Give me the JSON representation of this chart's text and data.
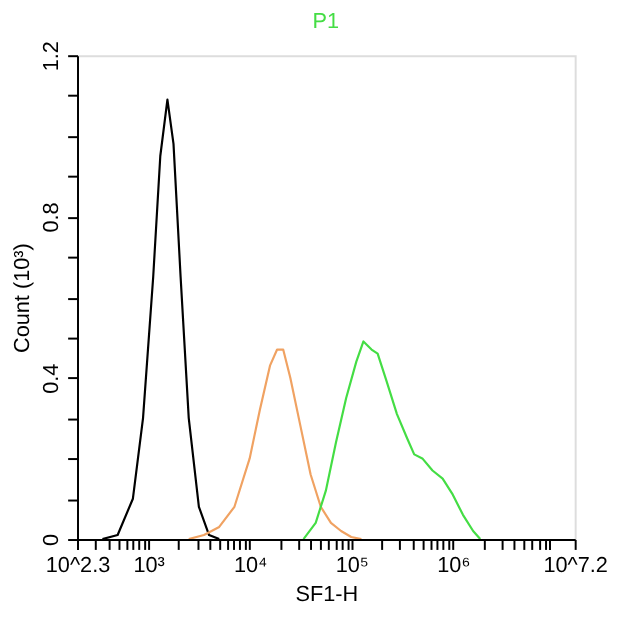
{
  "chart_data": {
    "type": "line",
    "xlabel": "SF1-H",
    "ylabel": "Count (10³)",
    "log": "x",
    "grid": false,
    "legend": false,
    "marker": "none",
    "line_style": "solid",
    "xlim": [
      199.5,
      15848932
    ],
    "ylim": [
      0,
      1.2
    ],
    "xticks": [
      {
        "value": 199.5,
        "label": "10^2.3"
      },
      {
        "value": 300,
        "label": null
      },
      {
        "value": 400,
        "label": null
      },
      {
        "value": 500,
        "label": null
      },
      {
        "value": 600,
        "label": null
      },
      {
        "value": 700,
        "label": null
      },
      {
        "value": 800,
        "label": null
      },
      {
        "value": 900,
        "label": null
      },
      {
        "value": 1000,
        "label": "10³"
      },
      {
        "value": 2000,
        "label": null
      },
      {
        "value": 3000,
        "label": null
      },
      {
        "value": 4000,
        "label": null
      },
      {
        "value": 5000,
        "label": null
      },
      {
        "value": 6000,
        "label": null
      },
      {
        "value": 7000,
        "label": null
      },
      {
        "value": 8000,
        "label": null
      },
      {
        "value": 9000,
        "label": null
      },
      {
        "value": 10000,
        "label": "10⁴"
      },
      {
        "value": 20000,
        "label": null
      },
      {
        "value": 30000,
        "label": null
      },
      {
        "value": 40000,
        "label": null
      },
      {
        "value": 50000,
        "label": null
      },
      {
        "value": 60000,
        "label": null
      },
      {
        "value": 70000,
        "label": null
      },
      {
        "value": 80000,
        "label": null
      },
      {
        "value": 90000,
        "label": null
      },
      {
        "value": 100000,
        "label": "10⁵"
      },
      {
        "value": 200000,
        "label": null
      },
      {
        "value": 300000,
        "label": null
      },
      {
        "value": 400000,
        "label": null
      },
      {
        "value": 500000,
        "label": null
      },
      {
        "value": 600000,
        "label": null
      },
      {
        "value": 700000,
        "label": null
      },
      {
        "value": 800000,
        "label": null
      },
      {
        "value": 900000,
        "label": null
      },
      {
        "value": 1000000,
        "label": "10⁶"
      },
      {
        "value": 2000000,
        "label": null
      },
      {
        "value": 3000000,
        "label": null
      },
      {
        "value": 4000000,
        "label": null
      },
      {
        "value": 5000000,
        "label": null
      },
      {
        "value": 6000000,
        "label": null
      },
      {
        "value": 7000000,
        "label": null
      },
      {
        "value": 8000000,
        "label": null
      },
      {
        "value": 9000000,
        "label": null
      },
      {
        "value": 15848932,
        "label": "10^7.2"
      }
    ],
    "yticks": [
      0,
      {
        "value": 0.1,
        "label": null
      },
      {
        "value": 0.2,
        "label": null
      },
      {
        "value": 0.3,
        "label": null
      },
      0.4,
      {
        "value": 0.5,
        "label": null
      },
      {
        "value": 0.6,
        "label": null
      },
      {
        "value": 0.7,
        "label": null
      },
      0.8,
      {
        "value": 0.9,
        "label": null
      },
      {
        "value": 1.0,
        "label": null
      },
      {
        "value": 1.1,
        "label": null
      },
      1.2
    ],
    "series": [
      {
        "color": "#000000",
        "x": [
          355,
          501,
          708,
          891,
          1122,
          1318,
          1549,
          1778,
          2089,
          2512,
          3162,
          3981,
          5012
        ],
        "values": [
          0,
          0.01,
          0.1,
          0.3,
          0.65,
          0.95,
          1.09,
          0.98,
          0.65,
          0.3,
          0.08,
          0.01,
          0
        ]
      },
      {
        "color": "#f0a262",
        "x": [
          2512,
          3548,
          5012,
          7079,
          10000,
          12589,
          15849,
          18621,
          21380,
          25119,
          31623,
          39811,
          50119,
          63096,
          79433,
          100000,
          125893
        ],
        "values": [
          0,
          0.01,
          0.03,
          0.08,
          0.2,
          0.32,
          0.43,
          0.47,
          0.47,
          0.4,
          0.28,
          0.16,
          0.08,
          0.04,
          0.02,
          0.005,
          0
        ]
      },
      {
        "name": "P1",
        "color": "#44dd44",
        "x": [
          33884,
          44668,
          56234,
          70795,
          89125,
          112202,
          131826,
          158489,
          181970,
          223872,
          281838,
          354813,
          416869,
          501187,
          630957,
          794328,
          1000000,
          1258925,
          1584893,
          1862087
        ],
        "values": [
          0,
          0.04,
          0.12,
          0.24,
          0.35,
          0.44,
          0.49,
          0.47,
          0.46,
          0.39,
          0.31,
          0.25,
          0.21,
          0.2,
          0.17,
          0.15,
          0.11,
          0.06,
          0.02,
          0
        ]
      }
    ]
  }
}
